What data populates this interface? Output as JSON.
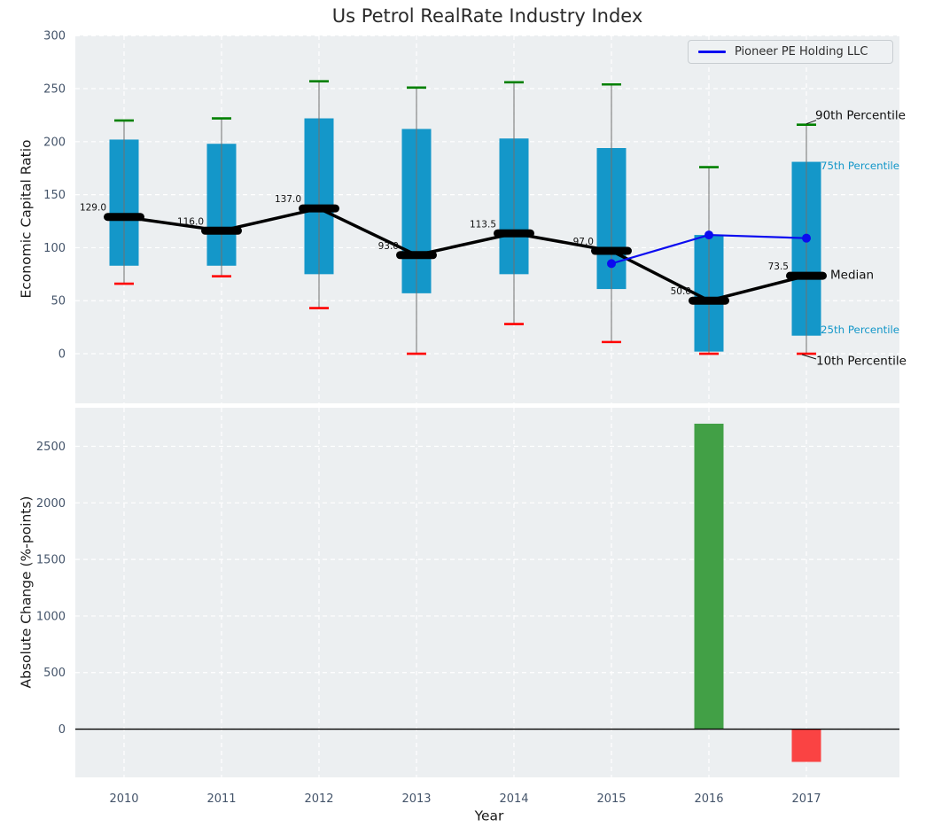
{
  "title": "Us Petrol RealRate Industry Index",
  "legend": {
    "label": "Pioneer PE Holding LLC"
  },
  "axes": {
    "top": {
      "ylabel": "Economic Capital Ratio",
      "yticks": [
        0,
        50,
        100,
        150,
        200,
        250,
        300
      ],
      "ylim": [
        -47,
        300
      ],
      "grid": "white-dashed"
    },
    "bottom": {
      "ylabel": "Absolute Change (%-points)",
      "xlabel": "Year",
      "yticks": [
        0,
        500,
        1000,
        1500,
        2000,
        2500
      ],
      "ylim": [
        -427,
        2841
      ],
      "grid": "white-dashed"
    }
  },
  "annotations": {
    "p90": "90th Percentile",
    "p75": "75th Percentile",
    "median": "Median",
    "p25": "25th Percentile",
    "p10": "10th Percentile"
  },
  "colors": {
    "box": "#1497c9",
    "percentile_text": "#1497c9",
    "median_line": "#000000",
    "pioneer_line": "#0b0bf0",
    "cap_high": "#008000",
    "cap_low": "#ff0000",
    "bar_positive": "#42a046",
    "bar_negative": "#fa4343",
    "panel_bg": "#eceff1",
    "grid": "#ffffff",
    "tick": "#44546a",
    "whisker": "#707070",
    "zero_line": "#000000"
  },
  "chart_data": [
    {
      "type": "box-percentile",
      "title": "Us Petrol RealRate Industry Index",
      "ylabel": "Economic Capital Ratio",
      "categories": [
        "2010",
        "2011",
        "2012",
        "2013",
        "2014",
        "2015",
        "2016",
        "2017"
      ],
      "series": [
        {
          "name": "10th percentile",
          "values": [
            66,
            73,
            43,
            0,
            28,
            11,
            0,
            0
          ]
        },
        {
          "name": "25th percentile",
          "values": [
            83,
            83,
            75,
            57,
            75,
            61,
            2,
            17
          ]
        },
        {
          "name": "median",
          "values": [
            129.0,
            116.0,
            137.0,
            93.0,
            113.5,
            97.0,
            50.0,
            73.5
          ]
        },
        {
          "name": "75th percentile",
          "values": [
            202,
            198,
            222,
            212,
            203,
            194,
            112,
            181
          ]
        },
        {
          "name": "90th percentile",
          "values": [
            220,
            222,
            257,
            251,
            256,
            254,
            176,
            216
          ]
        }
      ],
      "median_labels": [
        "129.0",
        "116.0",
        "137.0",
        "93.0",
        "113.5",
        "97.0",
        "50.0",
        "73.5"
      ],
      "line": {
        "name": "Pioneer PE Holding LLC",
        "x": [
          "2015",
          "2016",
          "2017"
        ],
        "values": [
          85,
          112,
          109
        ]
      },
      "legend_position": "upper right",
      "ylim": [
        -47,
        300
      ]
    },
    {
      "type": "bar",
      "ylabel": "Absolute Change (%-points)",
      "xlabel": "Year",
      "categories": [
        "2010",
        "2011",
        "2012",
        "2013",
        "2014",
        "2015",
        "2016",
        "2017"
      ],
      "values": [
        null,
        null,
        null,
        null,
        null,
        null,
        2700,
        -290
      ],
      "ylim": [
        -427,
        2841
      ]
    }
  ]
}
